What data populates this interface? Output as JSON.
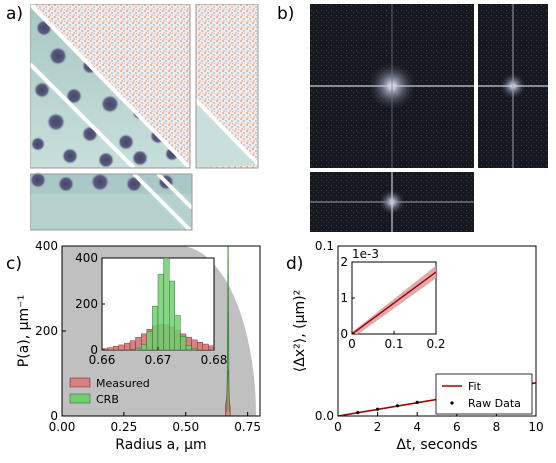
{
  "panels": {
    "a": {
      "label": "a)"
    },
    "b": {
      "label": "b)"
    },
    "c": {
      "label": "c)"
    },
    "d": {
      "label": "d)"
    }
  },
  "colors": {
    "measured": "#d98080",
    "crb": "#6fcf6f",
    "fit": "#a00000",
    "shade": "#c0c0c0",
    "particle_bg": "#bcd6d0",
    "particle": "#4d4d6a",
    "fft_bg": "#111418"
  },
  "panel_c": {
    "ylabel": "P(a), μm⁻¹",
    "xlabel": "Radius a, μm",
    "legend": [
      "Measured",
      "CRB"
    ],
    "inset_xticks": [
      "0.66",
      "0.67",
      "0.68"
    ],
    "inset_yticks": [
      "0",
      "200",
      "400"
    ]
  },
  "panel_d": {
    "ylabel": "⟨Δx²⟩, (μm)²",
    "xlabel": "Δt, seconds",
    "legend": [
      "Fit",
      "Raw Data"
    ],
    "inset_multiplier": "1e-3",
    "inset_xticks": [
      "0",
      "0.1",
      "0.2"
    ],
    "inset_yticks": [
      "0",
      "1",
      "2"
    ]
  },
  "chart_data": [
    {
      "type": "area",
      "panel": "c",
      "title": "",
      "xlabel": "Radius a, μm",
      "ylabel": "P(a), μm⁻¹",
      "xlim": [
        0,
        0.8
      ],
      "ylim": [
        0,
        400
      ],
      "xticks": [
        "0.00",
        "0.25",
        "0.50",
        "0.75"
      ],
      "yticks": [
        "0",
        "200",
        "400"
      ],
      "series": [
        {
          "name": "Measured",
          "x": [
            0.66,
            0.665,
            0.668,
            0.671,
            0.673,
            0.676,
            0.68
          ],
          "values": [
            20,
            45,
            80,
            110,
            90,
            40,
            15
          ]
        },
        {
          "name": "CRB",
          "x": [
            0.665,
            0.668,
            0.67,
            0.671,
            0.672,
            0.674,
            0.677
          ],
          "values": [
            10,
            80,
            250,
            400,
            280,
            80,
            10
          ]
        }
      ]
    },
    {
      "type": "line",
      "panel": "d",
      "title": "",
      "xlabel": "Δt, seconds",
      "ylabel": "⟨Δx²⟩, (μm)²",
      "xlim": [
        0,
        10
      ],
      "ylim": [
        0,
        0.1
      ],
      "xticks": [
        "0",
        "2",
        "4",
        "6",
        "8",
        "10"
      ],
      "yticks": [
        "0.0",
        "0.1"
      ],
      "series": [
        {
          "name": "Fit",
          "x": [
            0,
            10
          ],
          "values": [
            0,
            0.0195
          ]
        },
        {
          "name": "Raw Data",
          "x": [
            1,
            2,
            3,
            4,
            5,
            6,
            7,
            8,
            9
          ],
          "values": [
            0.002,
            0.004,
            0.006,
            0.008,
            0.0098,
            0.0118,
            0.0137,
            0.0156,
            0.0176
          ]
        }
      ]
    }
  ]
}
